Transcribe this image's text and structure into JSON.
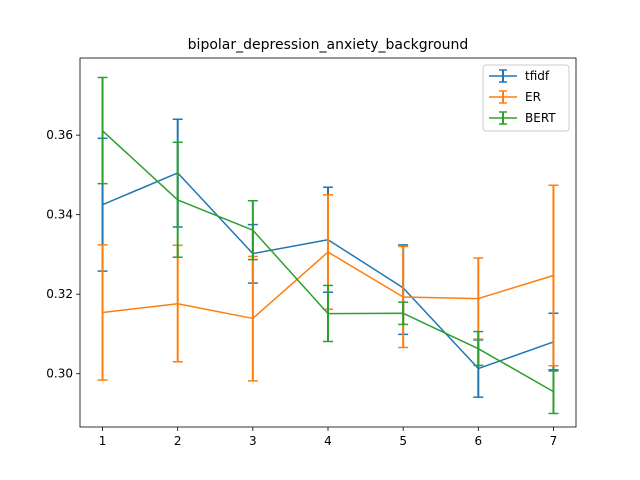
{
  "chart_data": {
    "type": "line",
    "title": "bipolar_depression_anxiety_background",
    "xlabel": "",
    "ylabel": "",
    "x": [
      1,
      2,
      3,
      4,
      5,
      6,
      7
    ],
    "xlim": [
      0.7,
      7.3
    ],
    "ylim": [
      0.2866,
      0.3794
    ],
    "yticks": [
      0.3,
      0.32,
      0.34,
      0.36
    ],
    "ytick_labels": [
      "0.30",
      "0.32",
      "0.34",
      "0.36"
    ],
    "xtick_labels": [
      "1",
      "2",
      "3",
      "4",
      "5",
      "6",
      "7"
    ],
    "grid": false,
    "legend_position": "top-right",
    "series": [
      {
        "name": "tfidf",
        "color": "#1f77b4",
        "values": [
          0.3425,
          0.3505,
          0.3302,
          0.3337,
          0.3216,
          0.3013,
          0.308
        ],
        "lower": [
          0.3258,
          0.3369,
          0.3228,
          0.3205,
          0.3099,
          0.2941,
          0.3007
        ],
        "upper": [
          0.3592,
          0.364,
          0.3375,
          0.3469,
          0.3324,
          0.3085,
          0.3152
        ]
      },
      {
        "name": "ER",
        "color": "#ff7f0e",
        "values": [
          0.3154,
          0.3176,
          0.3139,
          0.3306,
          0.3193,
          0.3189,
          0.3247
        ],
        "lower": [
          0.2984,
          0.303,
          0.2982,
          0.3162,
          0.3066,
          0.3087,
          0.302
        ],
        "upper": [
          0.3324,
          0.3323,
          0.3295,
          0.345,
          0.332,
          0.3291,
          0.3474
        ]
      },
      {
        "name": "BERT",
        "color": "#2ca02c",
        "values": [
          0.3611,
          0.3437,
          0.3361,
          0.3151,
          0.3152,
          0.3063,
          0.2955
        ],
        "lower": [
          0.3478,
          0.3293,
          0.3287,
          0.3081,
          0.3124,
          0.3021,
          0.29
        ],
        "upper": [
          0.3745,
          0.3582,
          0.3435,
          0.3222,
          0.318,
          0.3106,
          0.301
        ]
      }
    ]
  }
}
